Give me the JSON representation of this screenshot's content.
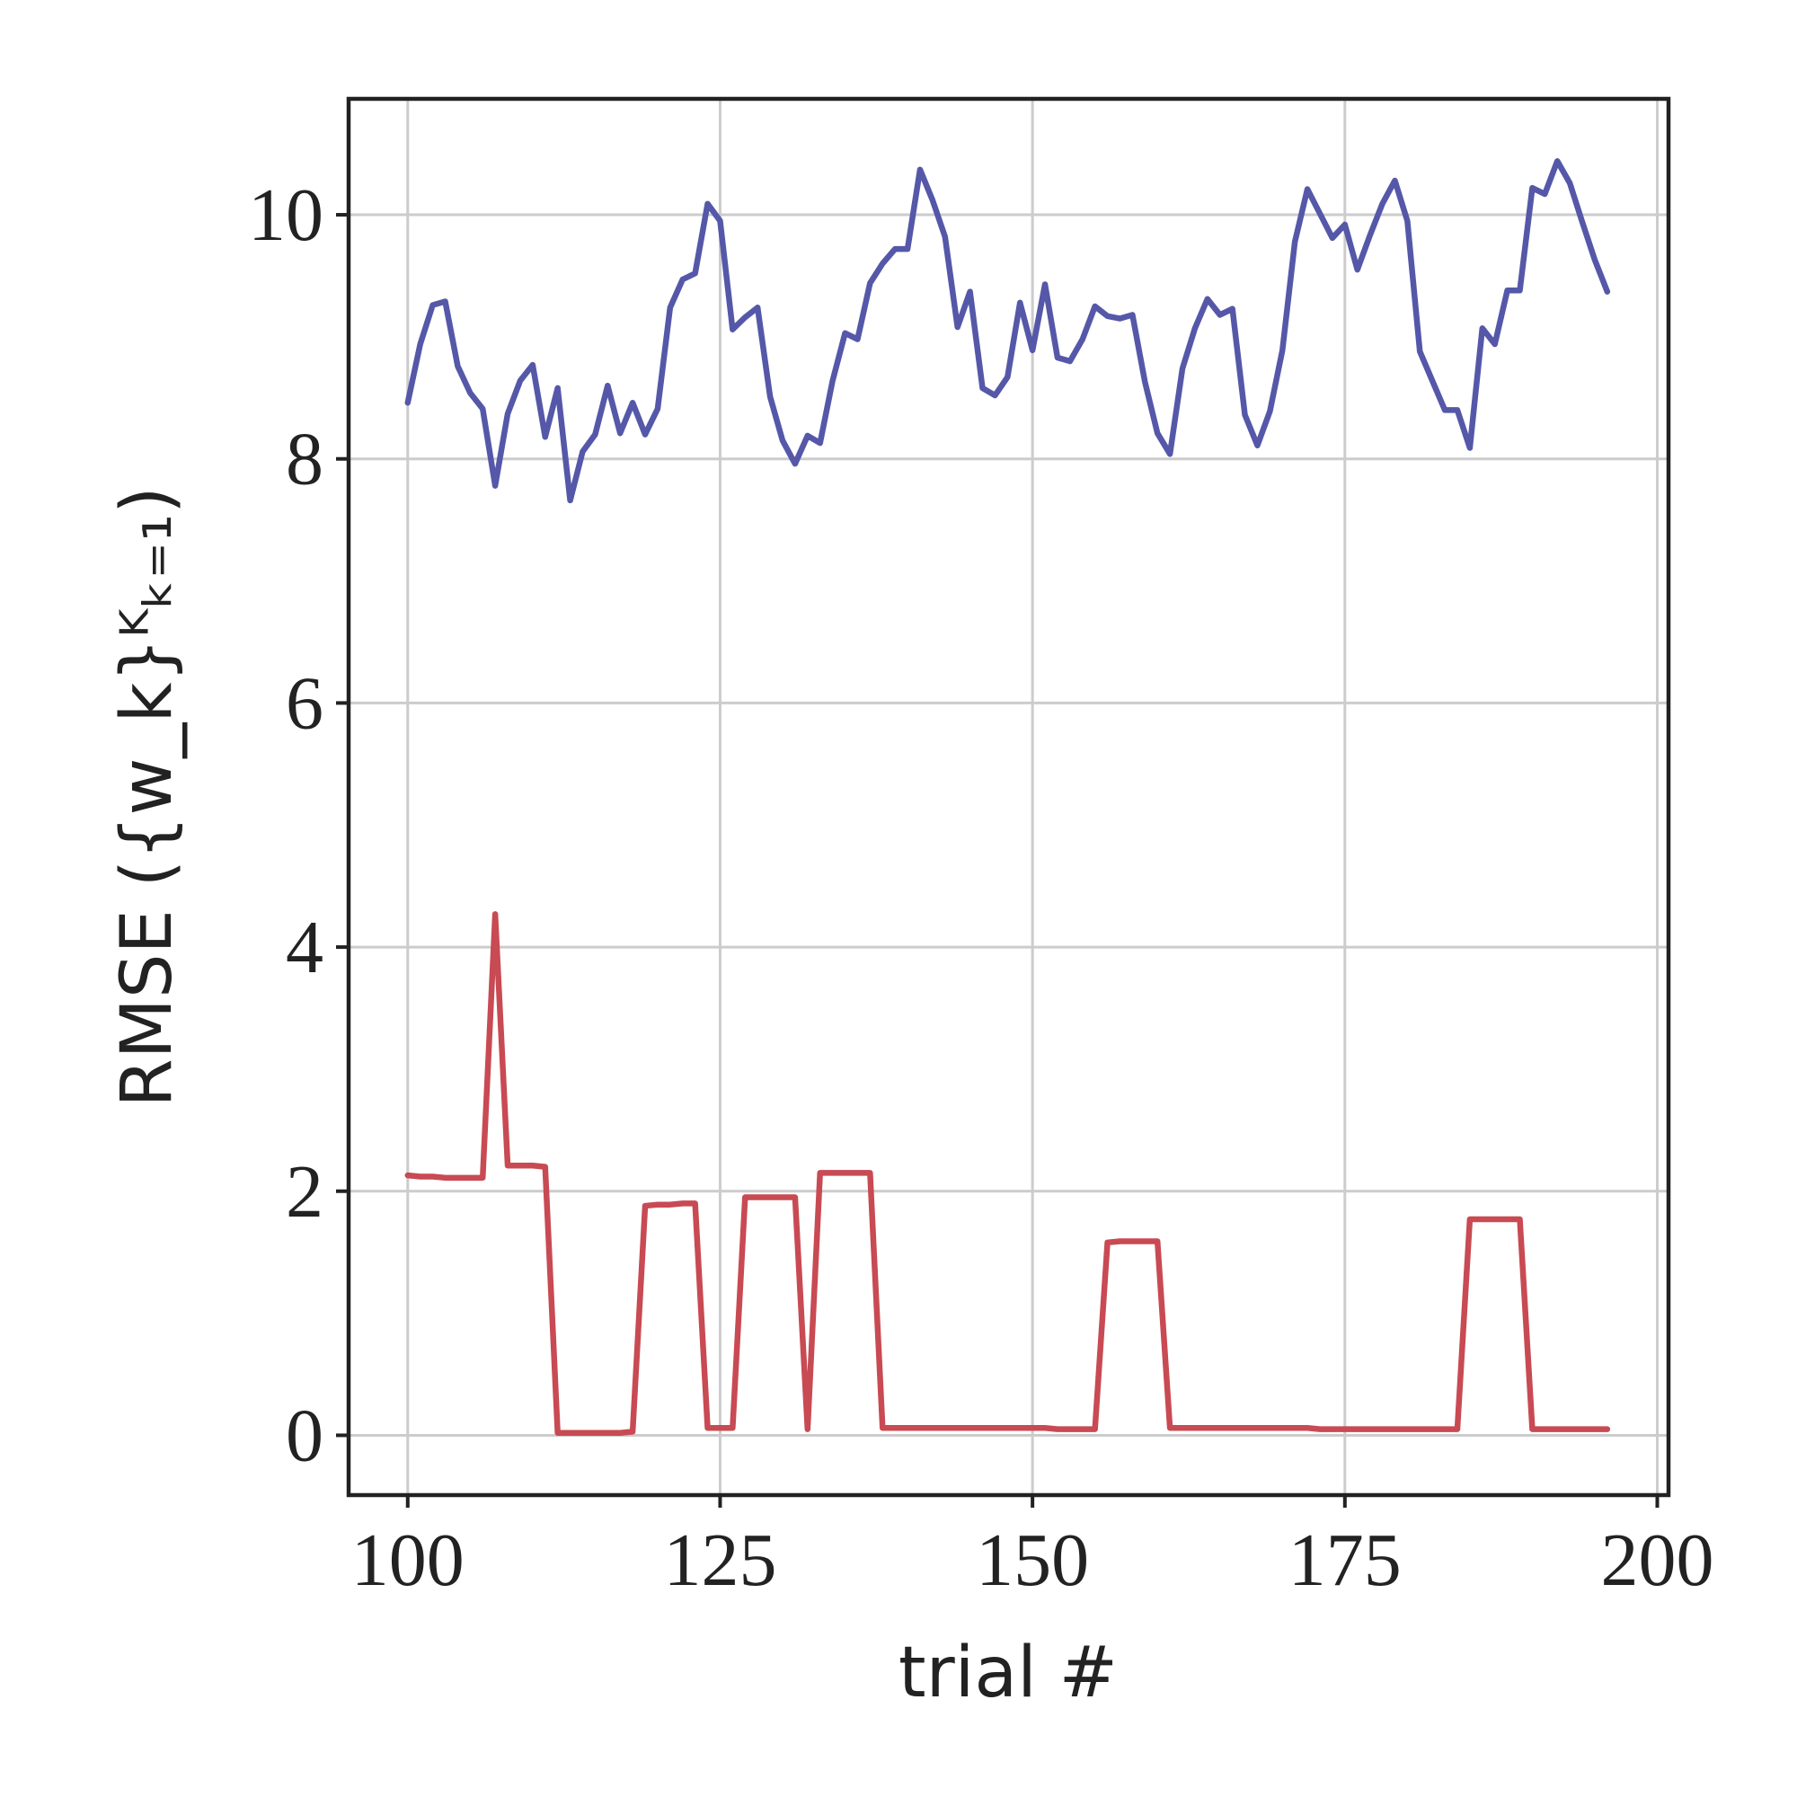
{
  "chart_data": {
    "type": "line",
    "x_label": "trial #",
    "y_label": "RMSE ({w_k}ᴷₖ₌₁)",
    "x": [
      100,
      101,
      102,
      103,
      104,
      105,
      106,
      107,
      108,
      109,
      110,
      111,
      112,
      113,
      114,
      115,
      116,
      117,
      118,
      119,
      120,
      121,
      122,
      123,
      124,
      125,
      126,
      127,
      128,
      129,
      130,
      131,
      132,
      133,
      134,
      135,
      136,
      137,
      138,
      139,
      140,
      141,
      142,
      143,
      144,
      145,
      146,
      147,
      148,
      149,
      150,
      151,
      152,
      153,
      154,
      155,
      156,
      157,
      158,
      159,
      160,
      161,
      162,
      163,
      164,
      165,
      166,
      167,
      168,
      169,
      170,
      171,
      172,
      173,
      174,
      175,
      176,
      177,
      178,
      179,
      180,
      181,
      182,
      183,
      184,
      185,
      186,
      187,
      188,
      189,
      190,
      191,
      192,
      193,
      194,
      195,
      196
    ],
    "series": [
      {
        "color": "#5558a8",
        "values": [
          8.46,
          8.94,
          9.26,
          9.29,
          8.76,
          8.54,
          8.41,
          7.78,
          8.37,
          8.64,
          8.77,
          8.18,
          8.58,
          7.66,
          8.06,
          8.2,
          8.6,
          8.21,
          8.46,
          8.2,
          8.41,
          9.24,
          9.47,
          9.52,
          10.09,
          9.95,
          9.06,
          9.16,
          9.24,
          8.51,
          8.15,
          7.96,
          8.19,
          8.13,
          8.64,
          9.03,
          8.98,
          9.44,
          9.6,
          9.72,
          9.72,
          10.37,
          10.12,
          9.82,
          9.08,
          9.37,
          8.58,
          8.52,
          8.67,
          9.28,
          8.89,
          9.43,
          8.83,
          8.8,
          8.98,
          9.25,
          9.17,
          9.15,
          9.18,
          8.63,
          8.21,
          8.04,
          8.74,
          9.07,
          9.31,
          9.18,
          9.23,
          8.36,
          8.11,
          8.39,
          8.89,
          9.78,
          10.21,
          10.01,
          9.81,
          9.92,
          9.55,
          9.83,
          10.09,
          10.28,
          9.95,
          8.88,
          8.64,
          8.4,
          8.4,
          8.09,
          9.07,
          8.94,
          9.38,
          9.38,
          10.22,
          10.17,
          10.44,
          10.26,
          9.94,
          9.63,
          9.37
        ]
      },
      {
        "color": "#c84a53",
        "values": [
          2.13,
          2.12,
          2.12,
          2.11,
          2.11,
          2.11,
          2.11,
          4.27,
          2.21,
          2.21,
          2.21,
          2.2,
          0.02,
          0.02,
          0.02,
          0.02,
          0.02,
          0.02,
          0.03,
          1.88,
          1.89,
          1.89,
          1.9,
          1.9,
          0.06,
          0.06,
          0.06,
          1.95,
          1.95,
          1.95,
          1.95,
          1.95,
          0.05,
          2.15,
          2.15,
          2.15,
          2.15,
          2.15,
          0.06,
          0.06,
          0.06,
          0.06,
          0.06,
          0.06,
          0.06,
          0.06,
          0.06,
          0.06,
          0.06,
          0.06,
          0.06,
          0.06,
          0.05,
          0.05,
          0.05,
          0.05,
          1.58,
          1.59,
          1.59,
          1.59,
          1.59,
          0.06,
          0.06,
          0.06,
          0.06,
          0.06,
          0.06,
          0.06,
          0.06,
          0.06,
          0.06,
          0.06,
          0.06,
          0.05,
          0.05,
          0.05,
          0.05,
          0.05,
          0.05,
          0.05,
          0.05,
          0.05,
          0.05,
          0.05,
          0.05,
          1.77,
          1.77,
          1.77,
          1.77,
          1.77,
          0.05,
          0.05,
          0.05,
          0.05,
          0.05,
          0.05,
          0.05
        ]
      }
    ],
    "xlim": [
      95.27,
      200.9
    ],
    "ylim": [
      -0.49,
      10.95
    ],
    "xticks": [
      100,
      125,
      150,
      175,
      200
    ],
    "yticks": [
      0,
      2,
      4,
      6,
      8,
      10
    ],
    "grid": true
  }
}
